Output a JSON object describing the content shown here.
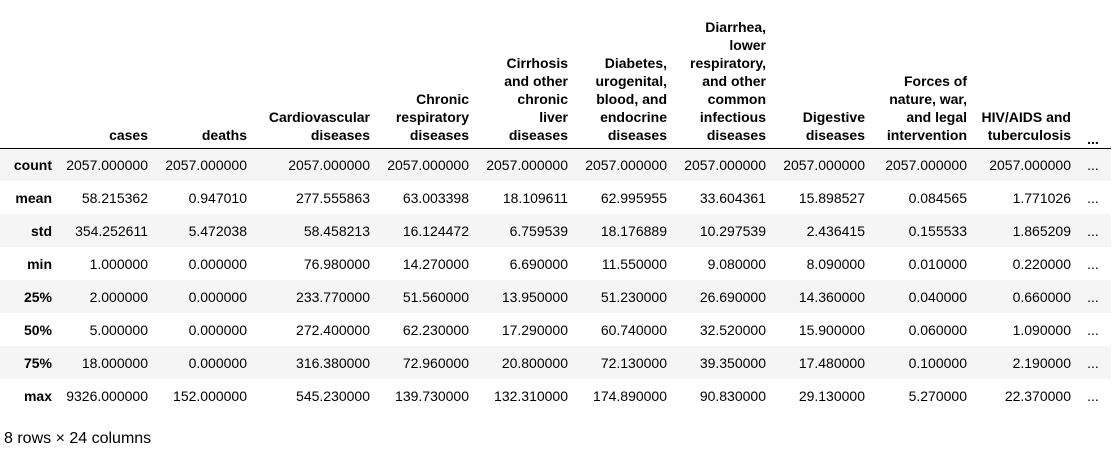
{
  "table": {
    "index_header": "",
    "columns": [
      "cases",
      "deaths",
      "Cardiovascular diseases",
      "Chronic respiratory diseases",
      "Cirrhosis and other chronic liver diseases",
      "Diabetes, urogenital, blood, and endocrine diseases",
      "Diarrhea, lower respiratory, and other common infectious diseases",
      "Digestive diseases",
      "Forces of nature, war, and legal intervention",
      "HIV/AIDS and tuberculosis"
    ],
    "ellipsis": "...",
    "rows": [
      {
        "label": "count",
        "values": [
          "2057.000000",
          "2057.000000",
          "2057.000000",
          "2057.000000",
          "2057.000000",
          "2057.000000",
          "2057.000000",
          "2057.000000",
          "2057.000000",
          "2057.000000"
        ]
      },
      {
        "label": "mean",
        "values": [
          "58.215362",
          "0.947010",
          "277.555863",
          "63.003398",
          "18.109611",
          "62.995955",
          "33.604361",
          "15.898527",
          "0.084565",
          "1.771026"
        ]
      },
      {
        "label": "std",
        "values": [
          "354.252611",
          "5.472038",
          "58.458213",
          "16.124472",
          "6.759539",
          "18.176889",
          "10.297539",
          "2.436415",
          "0.155533",
          "1.865209"
        ]
      },
      {
        "label": "min",
        "values": [
          "1.000000",
          "0.000000",
          "76.980000",
          "14.270000",
          "6.690000",
          "11.550000",
          "9.080000",
          "8.090000",
          "0.010000",
          "0.220000"
        ]
      },
      {
        "label": "25%",
        "values": [
          "2.000000",
          "0.000000",
          "233.770000",
          "51.560000",
          "13.950000",
          "51.230000",
          "26.690000",
          "14.360000",
          "0.040000",
          "0.660000"
        ]
      },
      {
        "label": "50%",
        "values": [
          "5.000000",
          "0.000000",
          "272.400000",
          "62.230000",
          "17.290000",
          "60.740000",
          "32.520000",
          "15.900000",
          "0.060000",
          "1.090000"
        ]
      },
      {
        "label": "75%",
        "values": [
          "18.000000",
          "0.000000",
          "316.380000",
          "72.960000",
          "20.800000",
          "72.130000",
          "39.350000",
          "17.480000",
          "0.100000",
          "2.190000"
        ]
      },
      {
        "label": "max",
        "values": [
          "9326.000000",
          "152.000000",
          "545.230000",
          "139.730000",
          "132.310000",
          "174.890000",
          "90.830000",
          "29.130000",
          "5.270000",
          "22.370000"
        ]
      }
    ]
  },
  "footer": "8 rows × 24 columns"
}
